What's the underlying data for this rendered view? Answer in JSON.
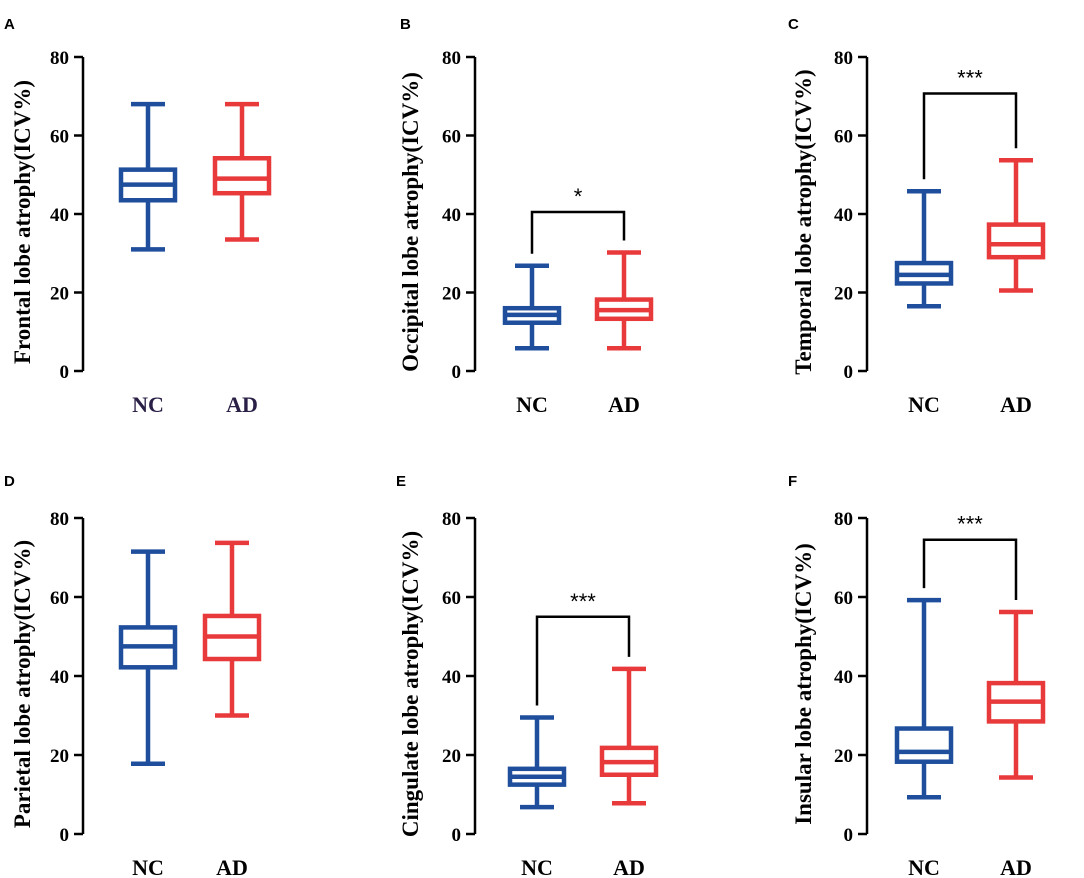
{
  "figure": {
    "colors": {
      "nc": "#1f4e9c",
      "ad": "#e8393b",
      "axis": "#000000",
      "frontal_category_text": "#2a1f45"
    }
  },
  "chart_data": [
    {
      "panel": "A",
      "type": "box",
      "ylabel": "Frontal lobe atrophy(ICV%)",
      "ylim": [
        0,
        80
      ],
      "yticks": [
        "0",
        "20",
        "40",
        "60",
        "80"
      ],
      "categories": [
        "NC",
        "AD"
      ],
      "boxes": [
        {
          "name": "NC",
          "min": 31,
          "q1": 43.5,
          "median": 47.5,
          "q3": 51.3,
          "max": 68
        },
        {
          "name": "AD",
          "min": 33.5,
          "q1": 45.3,
          "median": 49,
          "q3": 54.2,
          "max": 68
        }
      ],
      "significance": null
    },
    {
      "panel": "B",
      "type": "box",
      "ylabel": "Occipital lobe atrophy(ICV%)",
      "ylim": [
        0,
        80
      ],
      "yticks": [
        "0",
        "20",
        "40",
        "60",
        "80"
      ],
      "categories": [
        "NC",
        "AD"
      ],
      "boxes": [
        {
          "name": "NC",
          "min": 5.8,
          "q1": 12.3,
          "median": 14.3,
          "q3": 16,
          "max": 26.8
        },
        {
          "name": "AD",
          "min": 5.8,
          "q1": 13.3,
          "median": 15.5,
          "q3": 18.2,
          "max": 30.2
        }
      ],
      "significance": {
        "label": "*",
        "y": 40.5
      }
    },
    {
      "panel": "C",
      "type": "box",
      "ylabel": "Temporal lobe atrophy(ICV%)",
      "ylim": [
        0,
        80
      ],
      "yticks": [
        "0",
        "20",
        "40",
        "60",
        "80"
      ],
      "categories": [
        "NC",
        "AD"
      ],
      "boxes": [
        {
          "name": "NC",
          "min": 16.5,
          "q1": 22.3,
          "median": 24.5,
          "q3": 27.5,
          "max": 45.8
        },
        {
          "name": "AD",
          "min": 20.5,
          "q1": 29,
          "median": 32.3,
          "q3": 37.3,
          "max": 53.7
        }
      ],
      "significance": {
        "label": "***",
        "y": 70.7
      }
    },
    {
      "panel": "D",
      "type": "box",
      "ylabel": "Parietal lobe atrophy(ICV%)",
      "ylim": [
        0,
        80
      ],
      "yticks": [
        "0",
        "20",
        "40",
        "60",
        "80"
      ],
      "categories": [
        "NC",
        "AD"
      ],
      "boxes": [
        {
          "name": "NC",
          "min": 17.8,
          "q1": 42.2,
          "median": 47.5,
          "q3": 52.3,
          "max": 71.5
        },
        {
          "name": "AD",
          "min": 30,
          "q1": 44.3,
          "median": 50,
          "q3": 55.2,
          "max": 73.7
        }
      ],
      "significance": null
    },
    {
      "panel": "E",
      "type": "box",
      "ylabel": "Cingulate lobe atrophy(ICV%)",
      "ylim": [
        0,
        80
      ],
      "yticks": [
        "0",
        "20",
        "40",
        "60",
        "80"
      ],
      "categories": [
        "NC",
        "AD"
      ],
      "boxes": [
        {
          "name": "NC",
          "min": 6.8,
          "q1": 12.5,
          "median": 14.5,
          "q3": 16.5,
          "max": 29.5
        },
        {
          "name": "AD",
          "min": 7.8,
          "q1": 15,
          "median": 18.2,
          "q3": 21.8,
          "max": 41.8
        }
      ],
      "significance": {
        "label": "***",
        "y": 55
      }
    },
    {
      "panel": "F",
      "type": "box",
      "ylabel": "Insular lobe atrophy(ICV%)",
      "ylim": [
        0,
        80
      ],
      "yticks": [
        "0",
        "20",
        "40",
        "60",
        "80"
      ],
      "categories": [
        "NC",
        "AD"
      ],
      "boxes": [
        {
          "name": "NC",
          "min": 9.3,
          "q1": 18.3,
          "median": 20.8,
          "q3": 26.7,
          "max": 59.2
        },
        {
          "name": "AD",
          "min": 14.3,
          "q1": 28.5,
          "median": 33.5,
          "q3": 38.2,
          "max": 56.2
        }
      ],
      "significance": {
        "label": "***",
        "y": 74.5
      }
    }
  ]
}
